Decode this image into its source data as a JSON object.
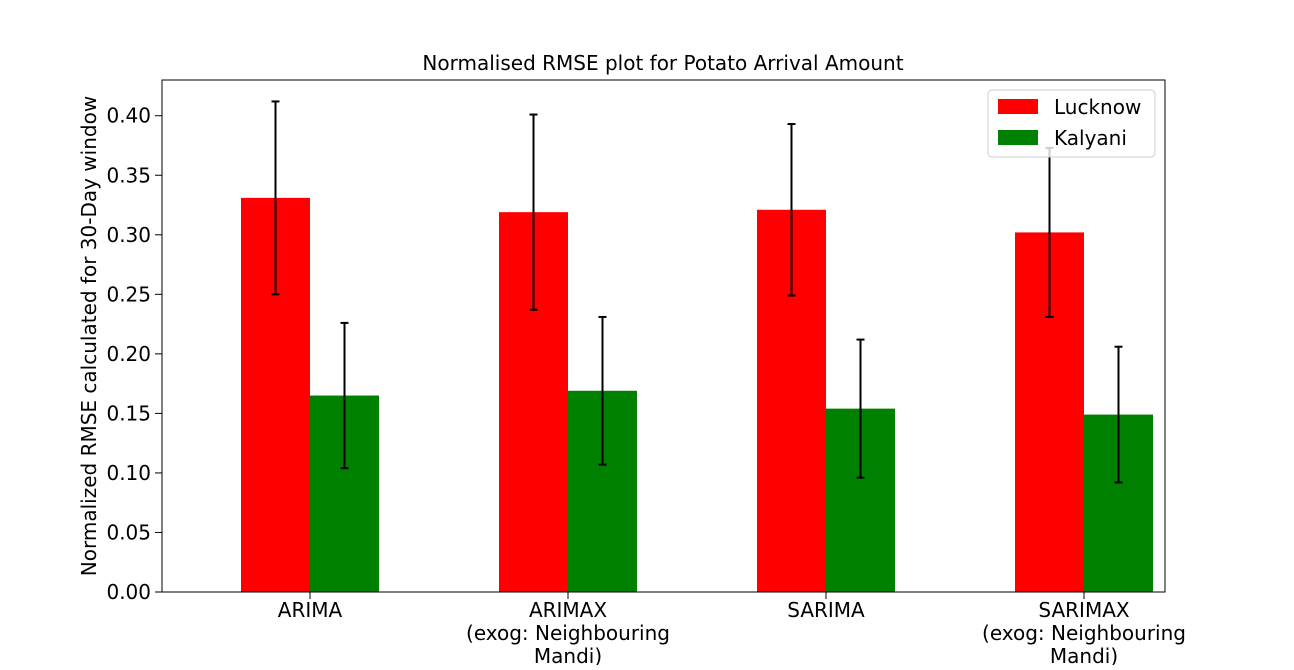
{
  "chart_data": {
    "type": "bar",
    "title": "Normalised RMSE plot for Potato Arrival Amount",
    "xlabel": "",
    "ylabel": "Normalized RMSE calculated for 30-Day window",
    "categories": [
      [
        "ARIMA"
      ],
      [
        "ARIMAX",
        "(exog: Neighbouring",
        "Mandi)"
      ],
      [
        "SARIMA"
      ],
      [
        "SARIMAX",
        "(exog: Neighbouring",
        "Mandi)"
      ]
    ],
    "ylim": [
      0,
      0.43
    ],
    "yticks": [
      "0.00",
      "0.05",
      "0.10",
      "0.15",
      "0.20",
      "0.25",
      "0.30",
      "0.35",
      "0.40"
    ],
    "ytick_values": [
      0,
      0.05,
      0.1,
      0.15,
      0.2,
      0.25,
      0.3,
      0.35,
      0.4
    ],
    "grid": false,
    "legend_position": "top-right",
    "series": [
      {
        "name": "Lucknow",
        "color": "#ff0000",
        "values": [
          0.331,
          0.319,
          0.321,
          0.302
        ],
        "errors": [
          0.081,
          0.082,
          0.072,
          0.071
        ]
      },
      {
        "name": "Kalyani",
        "color": "#008000",
        "values": [
          0.165,
          0.169,
          0.154,
          0.149
        ],
        "errors": [
          0.061,
          0.062,
          0.058,
          0.057
        ]
      }
    ]
  }
}
